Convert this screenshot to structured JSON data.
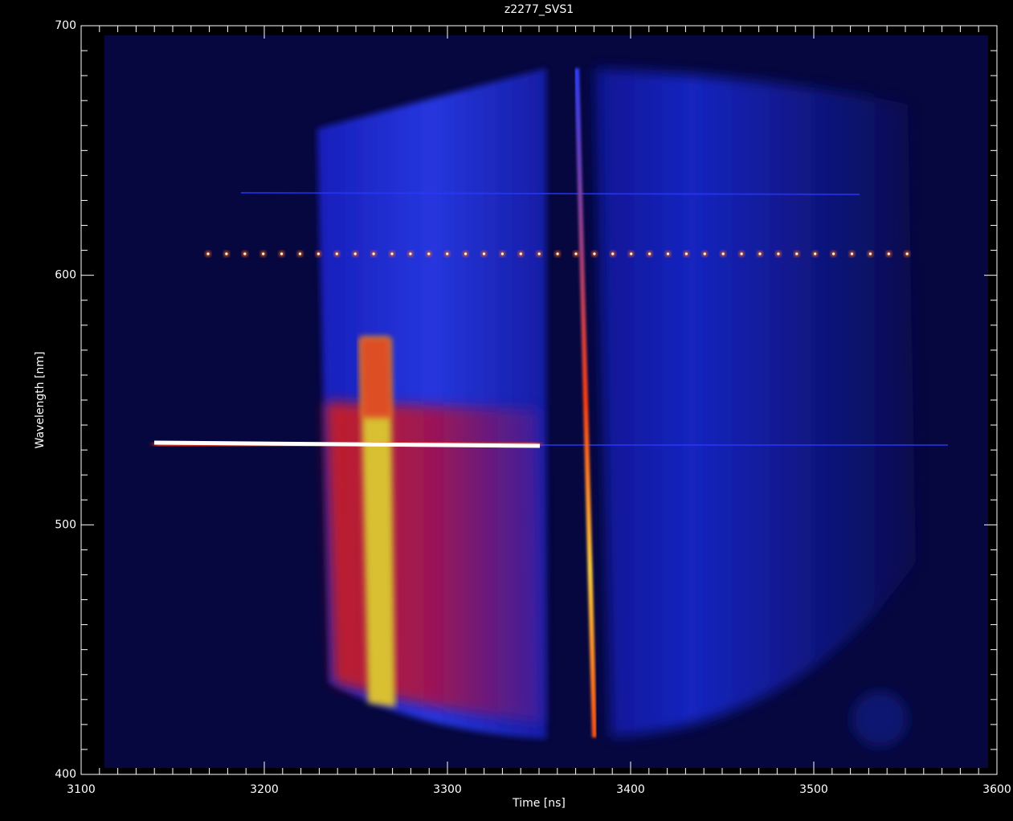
{
  "chart_data": {
    "type": "image",
    "title": "z2277_SVS1",
    "x_label": "Time [ns]",
    "y_label": "Wavelength [nm]",
    "xlim": [
      3100,
      3600
    ],
    "xticks": [
      3100,
      3200,
      3300,
      3400,
      3500,
      3600
    ],
    "ylim": [
      400,
      700
    ],
    "yticks": [
      400,
      500,
      600,
      700
    ]
  }
}
